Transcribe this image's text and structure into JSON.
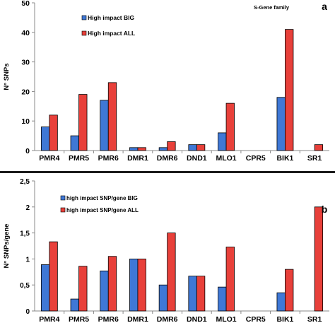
{
  "chart_data": [
    {
      "type": "bar",
      "panel_letter": "a",
      "inset_label": "S-Gene family",
      "ylabel": "N° SNPs",
      "xlabel": "",
      "ylim": [
        0,
        50
      ],
      "yticks": [
        0,
        10,
        20,
        30,
        40,
        50
      ],
      "ytick_labels": [
        "0",
        "10",
        "20",
        "30",
        "40",
        "50"
      ],
      "grid": false,
      "legend_position": "top-left",
      "categories": [
        "PMR4",
        "PMR5",
        "PMR6",
        "DMR1",
        "DMR6",
        "DND1",
        "MLO1",
        "CPR5",
        "BIK1",
        "SR1"
      ],
      "series": [
        {
          "name": "High impact BIG",
          "color": "#3f78d6",
          "values": [
            8,
            5,
            17,
            1,
            1,
            2,
            6,
            0,
            18,
            0
          ]
        },
        {
          "name": "High impact ALL",
          "color": "#e8403a",
          "values": [
            12,
            19,
            23,
            1,
            3,
            2,
            16,
            0,
            41,
            2
          ]
        }
      ]
    },
    {
      "type": "bar",
      "panel_letter": "b",
      "ylabel": "N° SNPs/gene",
      "xlabel": "",
      "ylim": [
        0,
        2.5
      ],
      "yticks": [
        0,
        0.5,
        1,
        1.5,
        2,
        2.5
      ],
      "ytick_labels": [
        "0",
        "0,5",
        "1",
        "1,5",
        "2",
        "2,5"
      ],
      "grid": false,
      "legend_position": "top-left",
      "categories": [
        "PMR4",
        "PMR5",
        "PMR6",
        "DMR1",
        "DMR6",
        "DND1",
        "MLO1",
        "CPR5",
        "BIK1",
        "SR1"
      ],
      "series": [
        {
          "name": "high impact SNP/gene BIG",
          "color": "#3f78d6",
          "values": [
            0.89,
            0.23,
            0.77,
            1.0,
            0.5,
            0.67,
            0.46,
            0,
            0.35,
            0
          ]
        },
        {
          "name": "high impact SNP/gene ALL",
          "color": "#e8403a",
          "values": [
            1.33,
            0.86,
            1.05,
            1.0,
            1.5,
            0.67,
            1.23,
            0,
            0.8,
            2.0
          ]
        }
      ]
    }
  ]
}
